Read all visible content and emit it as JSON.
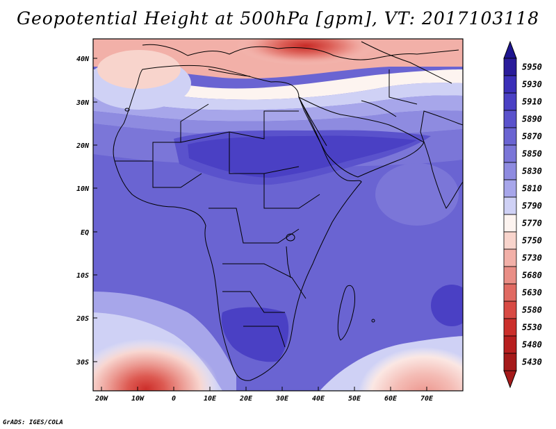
{
  "title": "Geopotential Height at 500hPa [gpm], VT: 2017103118",
  "credit": "GrADS: IGES/COLA",
  "lat_labels": [
    "40N",
    "30N",
    "20N",
    "10N",
    "EQ",
    "10S",
    "20S",
    "30S"
  ],
  "lon_labels": [
    "20W",
    "10W",
    "0",
    "10E",
    "20E",
    "30E",
    "40E",
    "50E",
    "60E",
    "70E"
  ],
  "colorbar": {
    "levels": [
      "5950",
      "5930",
      "5910",
      "5890",
      "5870",
      "5850",
      "5830",
      "5810",
      "5790",
      "5770",
      "5750",
      "5730",
      "5680",
      "5630",
      "5580",
      "5530",
      "5480",
      "5430"
    ],
    "colors": [
      "#2a1c9a",
      "#3b2fb8",
      "#4a40c4",
      "#5a52cc",
      "#6a64d2",
      "#7b76d8",
      "#8e8be0",
      "#a7a6ea",
      "#cfd1f5",
      "#fdf4f0",
      "#f8d4cc",
      "#f2b0a8",
      "#e98e86",
      "#e06a62",
      "#d84a44",
      "#cb2f2b",
      "#b71f1f",
      "#a51a1a"
    ],
    "top_triangle_color": "#1e1590",
    "bottom_triangle_color": "#a51a1a"
  },
  "map": {
    "variable": "Geopotential Height at 500hPa",
    "units": "gpm",
    "valid_time": "2017103118",
    "region": "Africa",
    "lon_range": [
      -22,
      80
    ],
    "lat_range": [
      -37,
      44
    ]
  }
}
